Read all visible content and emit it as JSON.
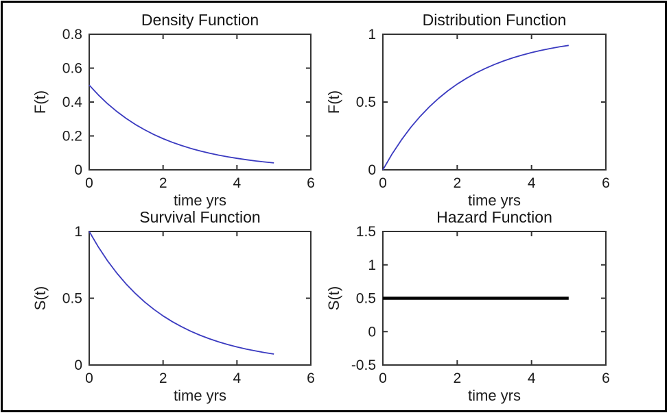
{
  "figure": {
    "background": "#ffffff",
    "border_color": "#000000",
    "axis_color": "#333333",
    "text_color": "#1b1b1b"
  },
  "chart_data": [
    {
      "id": "density",
      "type": "line",
      "title": "Density Function",
      "xlabel": "time yrs",
      "ylabel": "F(t)",
      "xlim": [
        0,
        6
      ],
      "ylim": [
        0,
        0.8
      ],
      "xticks": [
        0,
        2,
        4,
        6
      ],
      "yticks": [
        0,
        0.2,
        0.4,
        0.6,
        0.8
      ],
      "line_color": "#3a3ac0",
      "line_width": 1.8,
      "x": [
        0,
        0.25,
        0.5,
        0.75,
        1,
        1.25,
        1.5,
        1.75,
        2,
        2.25,
        2.5,
        2.75,
        3,
        3.25,
        3.5,
        3.75,
        4,
        4.25,
        4.5,
        4.75,
        5
      ],
      "y": [
        0.5,
        0.4412,
        0.3894,
        0.3437,
        0.3033,
        0.2676,
        0.2362,
        0.2084,
        0.1839,
        0.1623,
        0.1433,
        0.1264,
        0.1116,
        0.0984,
        0.0869,
        0.0767,
        0.0677,
        0.0597,
        0.0527,
        0.0465,
        0.041
      ]
    },
    {
      "id": "distribution",
      "type": "line",
      "title": "Distribution Function",
      "xlabel": "time yrs",
      "ylabel": "F(t)",
      "xlim": [
        0,
        6
      ],
      "ylim": [
        0,
        1
      ],
      "xticks": [
        0,
        2,
        4,
        6
      ],
      "yticks": [
        0,
        0.5,
        1
      ],
      "line_color": "#3a3ac0",
      "line_width": 1.8,
      "x": [
        0,
        0.25,
        0.5,
        0.75,
        1,
        1.25,
        1.5,
        1.75,
        2,
        2.25,
        2.5,
        2.75,
        3,
        3.25,
        3.5,
        3.75,
        4,
        4.25,
        4.5,
        4.75,
        5
      ],
      "y": [
        0,
        0.1175,
        0.2212,
        0.3127,
        0.3935,
        0.4647,
        0.5276,
        0.5831,
        0.6321,
        0.6753,
        0.7135,
        0.7472,
        0.7769,
        0.8031,
        0.8262,
        0.8466,
        0.8647,
        0.8806,
        0.8946,
        0.907,
        0.9179
      ]
    },
    {
      "id": "survival",
      "type": "line",
      "title": "Survival Function",
      "xlabel": "time yrs",
      "ylabel": "S(t)",
      "xlim": [
        0,
        6
      ],
      "ylim": [
        0,
        1
      ],
      "xticks": [
        0,
        2,
        4,
        6
      ],
      "yticks": [
        0,
        0.5,
        1
      ],
      "line_color": "#3a3ac0",
      "line_width": 1.8,
      "x": [
        0,
        0.25,
        0.5,
        0.75,
        1,
        1.25,
        1.5,
        1.75,
        2,
        2.25,
        2.5,
        2.75,
        3,
        3.25,
        3.5,
        3.75,
        4,
        4.25,
        4.5,
        4.75,
        5
      ],
      "y": [
        1,
        0.8825,
        0.7788,
        0.6873,
        0.6065,
        0.5353,
        0.4724,
        0.4169,
        0.3679,
        0.3247,
        0.2865,
        0.2528,
        0.2231,
        0.1969,
        0.1738,
        0.1534,
        0.1353,
        0.1194,
        0.1054,
        0.093,
        0.0821
      ]
    },
    {
      "id": "hazard",
      "type": "line",
      "title": "Hazard Function",
      "xlabel": "time yrs",
      "ylabel": "S(t)",
      "xlim": [
        0,
        6
      ],
      "ylim": [
        -0.5,
        1.5
      ],
      "xticks": [
        0,
        2,
        4,
        6
      ],
      "yticks": [
        -0.5,
        0,
        0.5,
        1,
        1.5
      ],
      "line_color": "#000000",
      "line_width": 4.5,
      "note": "constant hazard rate 0.5",
      "x": [
        0,
        5
      ],
      "y": [
        0.5,
        0.5
      ]
    }
  ]
}
